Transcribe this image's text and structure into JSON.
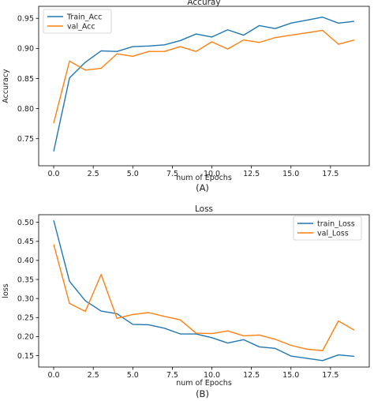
{
  "chart_data": [
    {
      "type": "line",
      "title": "Accuray",
      "xlabel": "num of Epochs",
      "ylabel": "Accuracy",
      "panel_label": "(A)",
      "x": [
        0,
        1,
        2,
        3,
        4,
        5,
        6,
        7,
        8,
        9,
        10,
        11,
        12,
        13,
        14,
        15,
        16,
        17,
        18,
        19
      ],
      "xlim": [
        -0.95,
        19.95
      ],
      "ylim": [
        0.705,
        0.97
      ],
      "xticks": [
        0.0,
        2.5,
        5.0,
        7.5,
        10.0,
        12.5,
        15.0,
        17.5
      ],
      "xtick_labels": [
        "0.0",
        "2.5",
        "5.0",
        "7.5",
        "10.0",
        "12.5",
        "15.0",
        "17.5"
      ],
      "yticks": [
        0.75,
        0.8,
        0.85,
        0.9,
        0.95
      ],
      "ytick_labels": [
        "0.75",
        "0.80",
        "0.85",
        "0.90",
        "0.95"
      ],
      "legend_position": "upper-left",
      "series": [
        {
          "name": "Train_Acc",
          "color": "#1f77b4",
          "values": [
            0.729,
            0.851,
            0.877,
            0.896,
            0.895,
            0.903,
            0.904,
            0.906,
            0.913,
            0.924,
            0.919,
            0.931,
            0.922,
            0.938,
            0.933,
            0.942,
            0.947,
            0.952,
            0.942,
            0.945
          ]
        },
        {
          "name": "val_Acc",
          "color": "#ff7f0e",
          "values": [
            0.776,
            0.879,
            0.864,
            0.867,
            0.891,
            0.887,
            0.895,
            0.895,
            0.903,
            0.895,
            0.911,
            0.899,
            0.914,
            0.91,
            0.918,
            0.922,
            0.926,
            0.93,
            0.907,
            0.914
          ]
        }
      ]
    },
    {
      "type": "line",
      "title": "Loss",
      "xlabel": "num of Epochs",
      "ylabel": "loss",
      "panel_label": "(B)",
      "x": [
        0,
        1,
        2,
        3,
        4,
        5,
        6,
        7,
        8,
        9,
        10,
        11,
        12,
        13,
        14,
        15,
        16,
        17,
        18,
        19
      ],
      "xlim": [
        -0.95,
        19.95
      ],
      "ylim": [
        0.12,
        0.52
      ],
      "xticks": [
        0.0,
        2.5,
        5.0,
        7.5,
        10.0,
        12.5,
        15.0,
        17.5
      ],
      "xtick_labels": [
        "0.0",
        "2.5",
        "5.0",
        "7.5",
        "10.0",
        "12.5",
        "15.0",
        "17.5"
      ],
      "yticks": [
        0.15,
        0.2,
        0.25,
        0.3,
        0.35,
        0.4,
        0.45,
        0.5
      ],
      "ytick_labels": [
        "0.15",
        "0.20",
        "0.25",
        "0.30",
        "0.35",
        "0.40",
        "0.45",
        "0.50"
      ],
      "legend_position": "upper-right",
      "series": [
        {
          "name": "train_Loss",
          "color": "#1f77b4",
          "values": [
            0.505,
            0.345,
            0.294,
            0.267,
            0.26,
            0.232,
            0.231,
            0.222,
            0.207,
            0.207,
            0.197,
            0.183,
            0.192,
            0.173,
            0.169,
            0.149,
            0.143,
            0.137,
            0.152,
            0.148
          ]
        },
        {
          "name": "val_Loss",
          "color": "#ff7f0e",
          "values": [
            0.442,
            0.287,
            0.266,
            0.363,
            0.248,
            0.258,
            0.263,
            0.253,
            0.244,
            0.209,
            0.208,
            0.215,
            0.202,
            0.204,
            0.193,
            0.177,
            0.167,
            0.163,
            0.241,
            0.217
          ]
        }
      ]
    }
  ]
}
